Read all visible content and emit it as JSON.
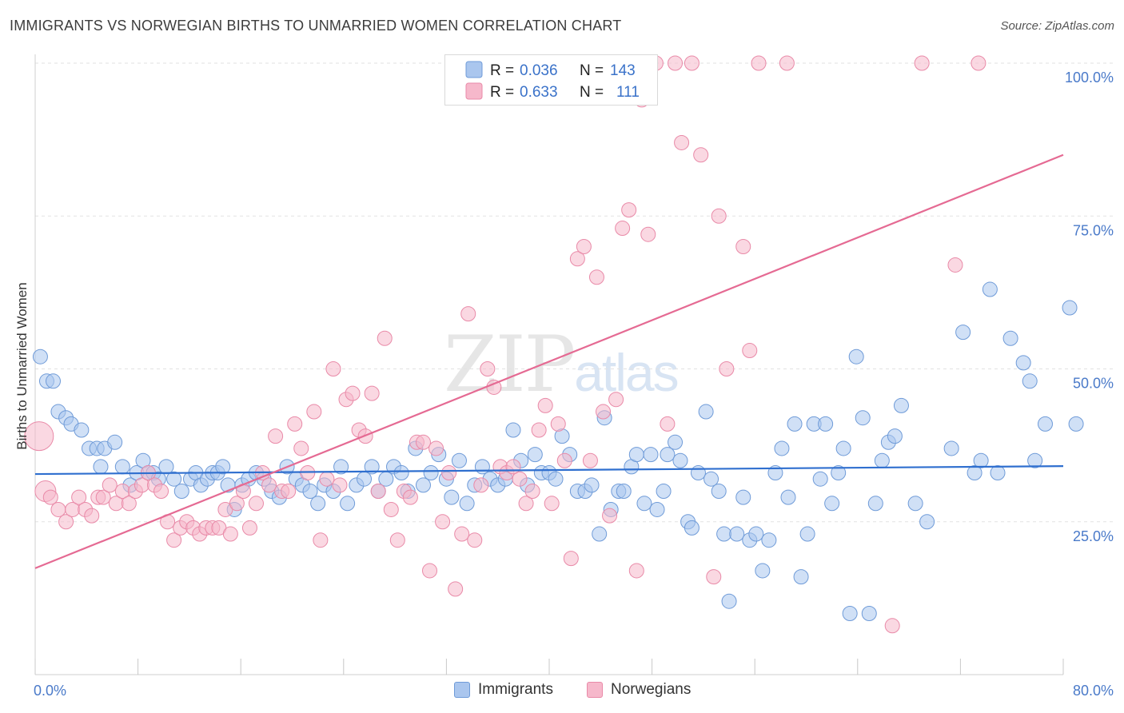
{
  "title": "IMMIGRANTS VS NORWEGIAN BIRTHS TO UNMARRIED WOMEN CORRELATION CHART",
  "source": "Source: ZipAtlas.com",
  "watermark": {
    "zip": "ZIP",
    "atlas": "atlas"
  },
  "colors": {
    "immigrants_fill": "#aac6ee",
    "immigrants_stroke": "#6f9bd8",
    "immigrants_line": "#2f6fcf",
    "norwegians_fill": "#f6b8cb",
    "norwegians_stroke": "#e98aa8",
    "norwegians_line": "#e56a93",
    "tick_label": "#4a7ac9",
    "grid": "#e2e2e2"
  },
  "legend": {
    "rows": [
      {
        "r_label": "R =",
        "r_value": "0.036",
        "n_label": "N =",
        "n_value": "143",
        "series": "immigrants"
      },
      {
        "r_label": "R =",
        "r_value": "0.633",
        "n_label": "N =",
        "n_value": "111",
        "series": "norwegians"
      }
    ]
  },
  "bottom_legend": {
    "immigrants": "Immigrants",
    "norwegians": "Norwegians"
  },
  "chart_data": {
    "type": "scatter",
    "title": "IMMIGRANTS VS NORWEGIAN BIRTHS TO UNMARRIED WOMEN CORRELATION CHART",
    "xlabel": "",
    "ylabel": "Births to Unmarried Women",
    "xlim": [
      0,
      80
    ],
    "ylim": [
      0,
      100
    ],
    "x_tick_labels": [
      "0.0%",
      "80.0%"
    ],
    "y_ticks": [
      25,
      50,
      75,
      100
    ],
    "y_tick_labels": [
      "25.0%",
      "50.0%",
      "75.0%",
      "100.0%"
    ],
    "grid": true,
    "legend_position": "top-center",
    "series": [
      {
        "name": "Immigrants",
        "r": 0.036,
        "n": 143,
        "trend": {
          "x": [
            0,
            80
          ],
          "y": [
            32.8,
            34.1
          ]
        },
        "points": [
          [
            0.4,
            52
          ],
          [
            0.9,
            48
          ],
          [
            1.4,
            48
          ],
          [
            1.8,
            43
          ],
          [
            2.4,
            42
          ],
          [
            2.8,
            41
          ],
          [
            3.6,
            40
          ],
          [
            4.2,
            37
          ],
          [
            4.8,
            37
          ],
          [
            5.4,
            37
          ],
          [
            5.1,
            34
          ],
          [
            6.2,
            38
          ],
          [
            6.8,
            34
          ],
          [
            7.4,
            31
          ],
          [
            7.9,
            33
          ],
          [
            8.4,
            35
          ],
          [
            8.8,
            33
          ],
          [
            9.2,
            33
          ],
          [
            9.6,
            32
          ],
          [
            10.2,
            34
          ],
          [
            10.8,
            32
          ],
          [
            11.4,
            30
          ],
          [
            12.1,
            32
          ],
          [
            12.5,
            33
          ],
          [
            12.9,
            31
          ],
          [
            13.4,
            32
          ],
          [
            13.8,
            33
          ],
          [
            14.2,
            33
          ],
          [
            14.6,
            34
          ],
          [
            15.0,
            31
          ],
          [
            15.5,
            27
          ],
          [
            16.1,
            31
          ],
          [
            16.6,
            32
          ],
          [
            17.2,
            33
          ],
          [
            17.8,
            32
          ],
          [
            18.4,
            30
          ],
          [
            19.0,
            29
          ],
          [
            19.6,
            34
          ],
          [
            20.3,
            32
          ],
          [
            20.8,
            31
          ],
          [
            21.4,
            30
          ],
          [
            22.0,
            28
          ],
          [
            22.5,
            31
          ],
          [
            23.2,
            30
          ],
          [
            23.8,
            34
          ],
          [
            24.3,
            28
          ],
          [
            25.0,
            31
          ],
          [
            25.6,
            32
          ],
          [
            26.2,
            34
          ],
          [
            26.7,
            30
          ],
          [
            27.3,
            32
          ],
          [
            27.9,
            34
          ],
          [
            28.5,
            33
          ],
          [
            29.0,
            30
          ],
          [
            29.6,
            37
          ],
          [
            30.2,
            31
          ],
          [
            30.8,
            33
          ],
          [
            31.4,
            36
          ],
          [
            32.0,
            32
          ],
          [
            32.4,
            29
          ],
          [
            33.0,
            35
          ],
          [
            33.6,
            28
          ],
          [
            34.2,
            31
          ],
          [
            34.8,
            34
          ],
          [
            35.4,
            32
          ],
          [
            36.0,
            31
          ],
          [
            36.6,
            32
          ],
          [
            37.2,
            40
          ],
          [
            37.8,
            35
          ],
          [
            38.3,
            31
          ],
          [
            38.9,
            36
          ],
          [
            39.4,
            33
          ],
          [
            40.0,
            33
          ],
          [
            40.5,
            32
          ],
          [
            41.0,
            39
          ],
          [
            41.6,
            36
          ],
          [
            42.2,
            30
          ],
          [
            42.8,
            30
          ],
          [
            43.3,
            31
          ],
          [
            43.9,
            23
          ],
          [
            44.3,
            42
          ],
          [
            44.8,
            27
          ],
          [
            45.4,
            30
          ],
          [
            45.8,
            30
          ],
          [
            46.4,
            34
          ],
          [
            46.8,
            36
          ],
          [
            47.4,
            28
          ],
          [
            47.9,
            36
          ],
          [
            48.4,
            27
          ],
          [
            48.9,
            30
          ],
          [
            49.2,
            36
          ],
          [
            49.8,
            38
          ],
          [
            50.2,
            35
          ],
          [
            50.8,
            25
          ],
          [
            51.1,
            24
          ],
          [
            51.6,
            33
          ],
          [
            52.2,
            43
          ],
          [
            52.6,
            32
          ],
          [
            53.2,
            30
          ],
          [
            53.6,
            23
          ],
          [
            54.0,
            12
          ],
          [
            54.6,
            23
          ],
          [
            55.1,
            29
          ],
          [
            55.6,
            22
          ],
          [
            56.1,
            23
          ],
          [
            56.6,
            17
          ],
          [
            57.1,
            22
          ],
          [
            57.6,
            33
          ],
          [
            58.1,
            37
          ],
          [
            58.6,
            29
          ],
          [
            59.1,
            41
          ],
          [
            59.6,
            16
          ],
          [
            60.1,
            23
          ],
          [
            60.6,
            41
          ],
          [
            61.1,
            32
          ],
          [
            61.5,
            41
          ],
          [
            62.0,
            28
          ],
          [
            62.5,
            33
          ],
          [
            62.9,
            37
          ],
          [
            63.4,
            10
          ],
          [
            63.9,
            52
          ],
          [
            64.4,
            42
          ],
          [
            64.9,
            10
          ],
          [
            65.4,
            28
          ],
          [
            65.9,
            35
          ],
          [
            66.4,
            38
          ],
          [
            66.9,
            39
          ],
          [
            67.4,
            44
          ],
          [
            68.5,
            28
          ],
          [
            69.4,
            25
          ],
          [
            71.3,
            37
          ],
          [
            72.2,
            56
          ],
          [
            73.1,
            33
          ],
          [
            73.6,
            35
          ],
          [
            74.3,
            63
          ],
          [
            75.9,
            55
          ],
          [
            76.9,
            51
          ],
          [
            77.4,
            48
          ],
          [
            78.6,
            41
          ],
          [
            77.8,
            35
          ],
          [
            74.9,
            33
          ],
          [
            80.5,
            60
          ],
          [
            81.0,
            41
          ]
        ]
      },
      {
        "name": "Norwegians",
        "r": 0.633,
        "n": 111,
        "trend": {
          "x": [
            0,
            80
          ],
          "y": [
            17.4,
            85.0
          ]
        },
        "points": [
          [
            0.3,
            39
          ],
          [
            0.8,
            30
          ],
          [
            1.2,
            29
          ],
          [
            1.8,
            27
          ],
          [
            2.4,
            25
          ],
          [
            2.9,
            27
          ],
          [
            3.4,
            29
          ],
          [
            3.9,
            27
          ],
          [
            4.4,
            26
          ],
          [
            4.9,
            29
          ],
          [
            5.3,
            29
          ],
          [
            5.8,
            31
          ],
          [
            6.3,
            28
          ],
          [
            6.8,
            30
          ],
          [
            7.3,
            28
          ],
          [
            7.8,
            30
          ],
          [
            8.3,
            31
          ],
          [
            8.8,
            33
          ],
          [
            9.3,
            31
          ],
          [
            9.8,
            30
          ],
          [
            10.3,
            25
          ],
          [
            10.8,
            22
          ],
          [
            11.3,
            24
          ],
          [
            11.8,
            25
          ],
          [
            12.3,
            24
          ],
          [
            12.8,
            23
          ],
          [
            13.3,
            24
          ],
          [
            13.8,
            24
          ],
          [
            14.3,
            24
          ],
          [
            14.8,
            27
          ],
          [
            15.2,
            23
          ],
          [
            15.7,
            28
          ],
          [
            16.2,
            30
          ],
          [
            16.7,
            24
          ],
          [
            17.2,
            28
          ],
          [
            17.7,
            33
          ],
          [
            18.2,
            31
          ],
          [
            18.7,
            39
          ],
          [
            19.2,
            30
          ],
          [
            19.7,
            30
          ],
          [
            20.2,
            41
          ],
          [
            20.7,
            37
          ],
          [
            21.2,
            33
          ],
          [
            21.7,
            43
          ],
          [
            22.2,
            22
          ],
          [
            22.7,
            32
          ],
          [
            23.2,
            50
          ],
          [
            23.7,
            31
          ],
          [
            24.2,
            45
          ],
          [
            24.7,
            46
          ],
          [
            25.2,
            40
          ],
          [
            25.7,
            39
          ],
          [
            26.2,
            46
          ],
          [
            26.7,
            30
          ],
          [
            27.2,
            55
          ],
          [
            27.7,
            27
          ],
          [
            28.2,
            22
          ],
          [
            28.7,
            30
          ],
          [
            29.2,
            29
          ],
          [
            29.7,
            38
          ],
          [
            30.2,
            38
          ],
          [
            30.7,
            17
          ],
          [
            31.2,
            37
          ],
          [
            31.7,
            25
          ],
          [
            32.2,
            33
          ],
          [
            32.7,
            14
          ],
          [
            33.2,
            23
          ],
          [
            33.7,
            59
          ],
          [
            34.2,
            22
          ],
          [
            34.7,
            31
          ],
          [
            35.2,
            50
          ],
          [
            35.7,
            47
          ],
          [
            36.2,
            34
          ],
          [
            36.7,
            33
          ],
          [
            37.2,
            34
          ],
          [
            37.7,
            32
          ],
          [
            38.2,
            28
          ],
          [
            38.7,
            30
          ],
          [
            39.2,
            40
          ],
          [
            39.7,
            44
          ],
          [
            40.2,
            28
          ],
          [
            40.7,
            41
          ],
          [
            41.2,
            35
          ],
          [
            41.7,
            19
          ],
          [
            42.2,
            68
          ],
          [
            42.7,
            70
          ],
          [
            43.2,
            35
          ],
          [
            43.7,
            65
          ],
          [
            44.2,
            43
          ],
          [
            44.7,
            26
          ],
          [
            45.2,
            45
          ],
          [
            45.7,
            73
          ],
          [
            46.2,
            76
          ],
          [
            46.8,
            17
          ],
          [
            47.2,
            94
          ],
          [
            47.7,
            72
          ],
          [
            48.3,
            100
          ],
          [
            49.2,
            41
          ],
          [
            49.8,
            100
          ],
          [
            50.3,
            87
          ],
          [
            51.1,
            100
          ],
          [
            51.8,
            85
          ],
          [
            52.8,
            16
          ],
          [
            53.2,
            75
          ],
          [
            53.8,
            50
          ],
          [
            55.1,
            70
          ],
          [
            55.6,
            53
          ],
          [
            56.3,
            100
          ],
          [
            58.5,
            100
          ],
          [
            66.7,
            8
          ],
          [
            69.0,
            100
          ],
          [
            71.6,
            67
          ],
          [
            73.4,
            100
          ]
        ]
      }
    ]
  }
}
